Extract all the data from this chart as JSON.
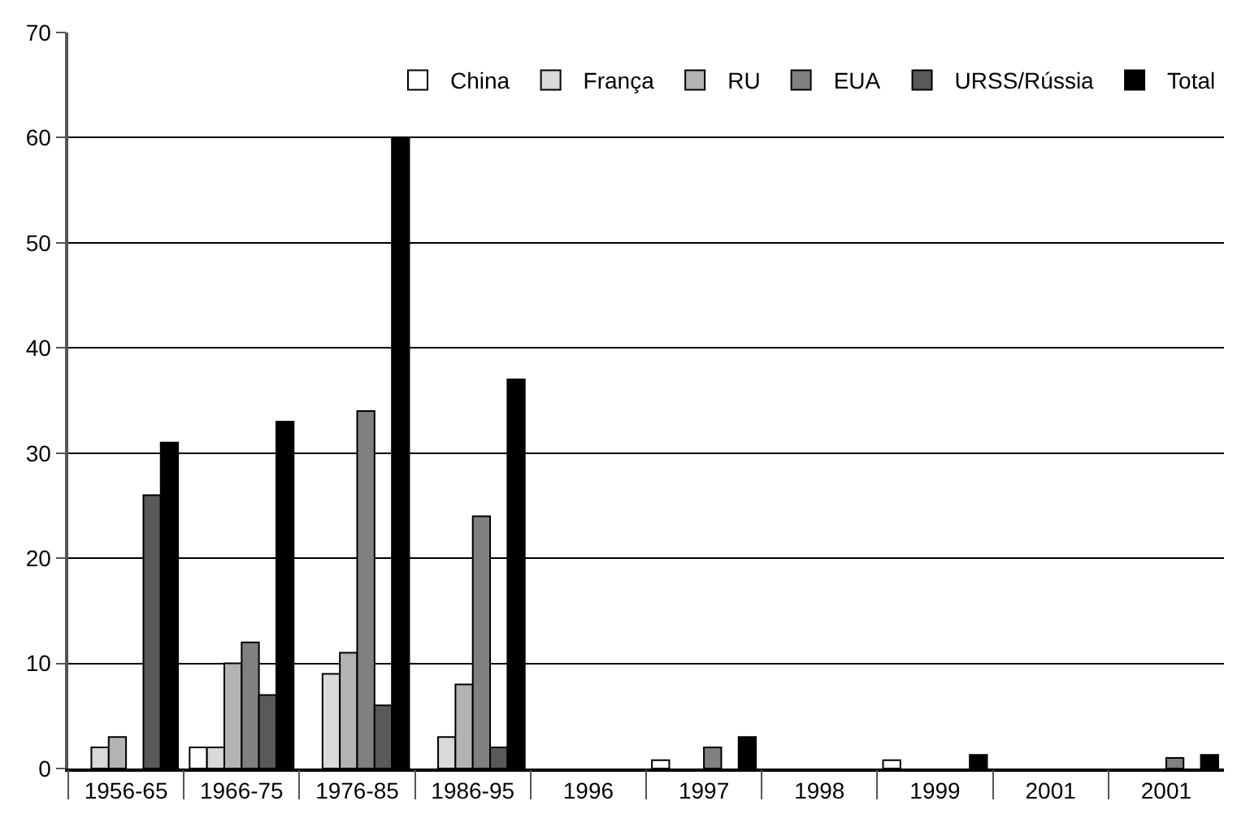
{
  "chart_data": {
    "type": "bar",
    "categories": [
      "1956-65",
      "1966-75",
      "1976-85",
      "1986-95",
      "1996",
      "1997",
      "1998",
      "1999",
      "2001",
      "2001"
    ],
    "series": [
      {
        "name": "China",
        "color": "#ffffff",
        "values": [
          null,
          2,
          null,
          null,
          null,
          0.8,
          null,
          0.8,
          null,
          null
        ]
      },
      {
        "name": "França",
        "color": "#d9d9d9",
        "values": [
          2,
          2,
          9,
          3,
          null,
          null,
          null,
          null,
          null,
          null
        ]
      },
      {
        "name": "RU",
        "color": "#b3b3b3",
        "values": [
          3,
          10,
          11,
          8,
          null,
          null,
          null,
          null,
          null,
          null
        ]
      },
      {
        "name": "EUA",
        "color": "#808080",
        "values": [
          null,
          12,
          34,
          24,
          null,
          2,
          null,
          null,
          null,
          1
        ]
      },
      {
        "name": "URSS/Rússia",
        "color": "#595959",
        "values": [
          26,
          7,
          6,
          2,
          null,
          null,
          null,
          null,
          null,
          null
        ]
      },
      {
        "name": "Total",
        "color": "#000000",
        "values": [
          31,
          33,
          60,
          37,
          null,
          3,
          null,
          1.3,
          null,
          1.3
        ]
      }
    ],
    "ylim": [
      0,
      70
    ],
    "yticks": [
      0,
      10,
      20,
      30,
      40,
      50,
      60,
      70
    ],
    "grid": "y",
    "legend": "top right"
  }
}
